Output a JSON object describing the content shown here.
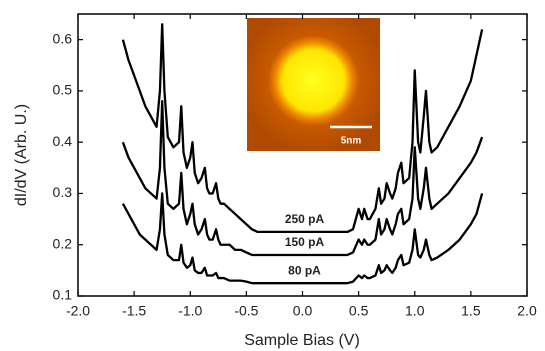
{
  "chart_data": {
    "type": "line",
    "xlabel": "Sample Bias (V)",
    "ylabel": "dI/dV (Arb. U.)",
    "inset_scale_label": "5nm",
    "x": [
      -1.6,
      -1.55,
      -1.5,
      -1.45,
      -1.4,
      -1.35,
      -1.3,
      -1.27,
      -1.25,
      -1.23,
      -1.2,
      -1.15,
      -1.1,
      -1.08,
      -1.06,
      -1.03,
      -1.0,
      -0.98,
      -0.96,
      -0.93,
      -0.9,
      -0.87,
      -0.85,
      -0.83,
      -0.8,
      -0.77,
      -0.75,
      -0.73,
      -0.7,
      -0.65,
      -0.6,
      -0.55,
      -0.5,
      -0.45,
      -0.4,
      -0.2,
      0,
      0.2,
      0.4,
      0.45,
      0.5,
      0.53,
      0.55,
      0.58,
      0.6,
      0.65,
      0.68,
      0.7,
      0.73,
      0.75,
      0.78,
      0.8,
      0.83,
      0.85,
      0.88,
      0.9,
      0.95,
      0.98,
      1.0,
      1.03,
      1.05,
      1.08,
      1.1,
      1.13,
      1.15,
      1.2,
      1.3,
      1.4,
      1.5,
      1.55,
      1.6
    ],
    "series": [
      {
        "name": "250 pA",
        "color": "#000000",
        "values": [
          0.6,
          0.56,
          0.53,
          0.5,
          0.47,
          0.45,
          0.43,
          0.5,
          0.63,
          0.5,
          0.41,
          0.39,
          0.4,
          0.47,
          0.38,
          0.35,
          0.37,
          0.4,
          0.34,
          0.32,
          0.33,
          0.35,
          0.31,
          0.3,
          0.3,
          0.32,
          0.29,
          0.28,
          0.28,
          0.27,
          0.26,
          0.25,
          0.24,
          0.23,
          0.225,
          0.225,
          0.225,
          0.225,
          0.225,
          0.23,
          0.27,
          0.25,
          0.27,
          0.25,
          0.25,
          0.27,
          0.31,
          0.28,
          0.29,
          0.32,
          0.3,
          0.29,
          0.31,
          0.34,
          0.36,
          0.32,
          0.33,
          0.4,
          0.54,
          0.4,
          0.38,
          0.45,
          0.5,
          0.4,
          0.38,
          0.39,
          0.43,
          0.47,
          0.52,
          0.57,
          0.62
        ]
      },
      {
        "name": "150 pA",
        "color": "#000000",
        "values": [
          0.4,
          0.37,
          0.35,
          0.33,
          0.31,
          0.3,
          0.29,
          0.35,
          0.48,
          0.35,
          0.28,
          0.27,
          0.28,
          0.34,
          0.27,
          0.24,
          0.26,
          0.28,
          0.24,
          0.22,
          0.23,
          0.25,
          0.22,
          0.21,
          0.21,
          0.23,
          0.21,
          0.2,
          0.2,
          0.2,
          0.19,
          0.19,
          0.185,
          0.18,
          0.18,
          0.18,
          0.18,
          0.18,
          0.18,
          0.185,
          0.21,
          0.2,
          0.21,
          0.2,
          0.2,
          0.21,
          0.25,
          0.22,
          0.23,
          0.25,
          0.23,
          0.22,
          0.24,
          0.26,
          0.27,
          0.24,
          0.25,
          0.29,
          0.39,
          0.29,
          0.27,
          0.31,
          0.35,
          0.29,
          0.27,
          0.28,
          0.3,
          0.33,
          0.36,
          0.38,
          0.41
        ]
      },
      {
        "name": "80 pA",
        "color": "#000000",
        "values": [
          0.28,
          0.26,
          0.24,
          0.22,
          0.21,
          0.2,
          0.19,
          0.23,
          0.3,
          0.22,
          0.18,
          0.17,
          0.17,
          0.2,
          0.165,
          0.155,
          0.16,
          0.175,
          0.15,
          0.145,
          0.145,
          0.155,
          0.14,
          0.14,
          0.14,
          0.145,
          0.135,
          0.135,
          0.135,
          0.13,
          0.13,
          0.13,
          0.128,
          0.125,
          0.125,
          0.125,
          0.125,
          0.125,
          0.125,
          0.128,
          0.14,
          0.135,
          0.14,
          0.135,
          0.135,
          0.14,
          0.16,
          0.145,
          0.15,
          0.16,
          0.15,
          0.145,
          0.155,
          0.17,
          0.18,
          0.16,
          0.165,
          0.19,
          0.23,
          0.18,
          0.175,
          0.19,
          0.21,
          0.18,
          0.17,
          0.175,
          0.19,
          0.21,
          0.24,
          0.26,
          0.3
        ]
      }
    ],
    "xlim": [
      -2,
      2
    ],
    "xticks": [
      {
        "value": -2,
        "label": "-2.0"
      },
      -1.5,
      {
        "value": -1,
        "label": "-1.0"
      },
      -0.5,
      {
        "value": 0,
        "label": "0.0"
      },
      0.5,
      {
        "value": 1,
        "label": "1.0"
      },
      1.5,
      {
        "value": 2,
        "label": "2.0"
      }
    ],
    "ylim": [
      0.1,
      0.65
    ],
    "yticks": [
      0.1,
      0.2,
      0.3,
      0.4,
      0.5,
      0.6
    ]
  }
}
